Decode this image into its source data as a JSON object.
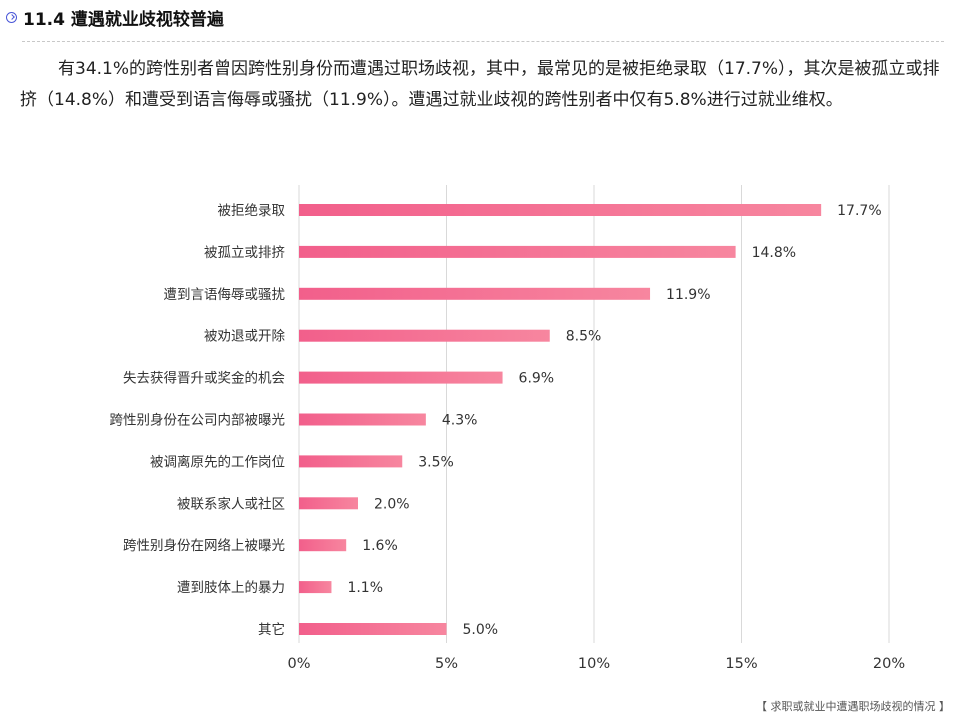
{
  "header": {
    "title": "11.4 遭遇就业歧视较普遍"
  },
  "intro_text": "有34.1%的跨性别者曾因跨性别身份而遭遇过职场歧视，其中，最常见的是被拒绝录取（17.7%），其次是被孤立或排挤（14.8%）和遭受到语言侮辱或骚扰（11.9%）。遭遇过就业歧视的跨性别者中仅有5.8%进行过就业维权。",
  "source_note": "【 求职或就业中遭遇职场歧视的情况 】",
  "chart_data": {
    "type": "bar",
    "orientation": "horizontal",
    "categories": [
      "被拒绝录取",
      "被孤立或排挤",
      "遭到言语侮辱或骚扰",
      "被劝退或开除",
      "失去获得晋升或奖金的机会",
      "跨性别身份在公司内部被曝光",
      "被调离原先的工作岗位",
      "被联系家人或社区",
      "跨性别身份在网络上被曝光",
      "遭到肢体上的暴力",
      "其它"
    ],
    "values": [
      17.7,
      14.8,
      11.9,
      8.5,
      6.9,
      4.3,
      3.5,
      2.0,
      1.6,
      1.1,
      5.0
    ],
    "value_labels": [
      "17.7%",
      "14.8%",
      "11.9%",
      "8.5%",
      "6.9%",
      "4.3%",
      "3.5%",
      "2.0%",
      "1.6%",
      "1.1%",
      "5.0%"
    ],
    "xlim": [
      0,
      20
    ],
    "xticks": [
      0,
      5,
      10,
      15,
      20
    ],
    "xtick_labels": [
      "0%",
      "5%",
      "10%",
      "15%",
      "20%"
    ],
    "grid": "vertical",
    "colors": {
      "bar_start": "#f25f8b",
      "bar_end": "#f7869f",
      "grid": "#d9d9d9",
      "text": "#333333"
    }
  }
}
